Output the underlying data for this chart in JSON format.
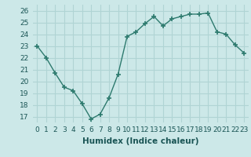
{
  "x": [
    0,
    1,
    2,
    3,
    4,
    5,
    6,
    7,
    8,
    9,
    10,
    11,
    12,
    13,
    14,
    15,
    16,
    17,
    18,
    19,
    20,
    21,
    22,
    23
  ],
  "y": [
    23.0,
    22.0,
    20.7,
    19.5,
    19.2,
    18.1,
    16.8,
    17.2,
    18.6,
    20.6,
    23.8,
    24.2,
    24.9,
    25.5,
    24.7,
    25.3,
    25.5,
    25.7,
    25.7,
    25.8,
    24.2,
    24.0,
    23.1,
    22.4
  ],
  "xlabel": "Humidex (Indice chaleur)",
  "ylim": [
    16.5,
    26.5
  ],
  "xlim": [
    -0.5,
    23.5
  ],
  "yticks": [
    17,
    18,
    19,
    20,
    21,
    22,
    23,
    24,
    25,
    26
  ],
  "xticks": [
    0,
    1,
    2,
    3,
    4,
    5,
    6,
    7,
    8,
    9,
    10,
    11,
    12,
    13,
    14,
    15,
    16,
    17,
    18,
    19,
    20,
    21,
    22,
    23
  ],
  "line_color": "#2d7a6e",
  "marker": "+",
  "marker_size": 4,
  "bg_color": "#cce8e8",
  "grid_color": "#b0d4d4",
  "tick_label_fontsize": 6.5,
  "xlabel_fontsize": 7.5
}
